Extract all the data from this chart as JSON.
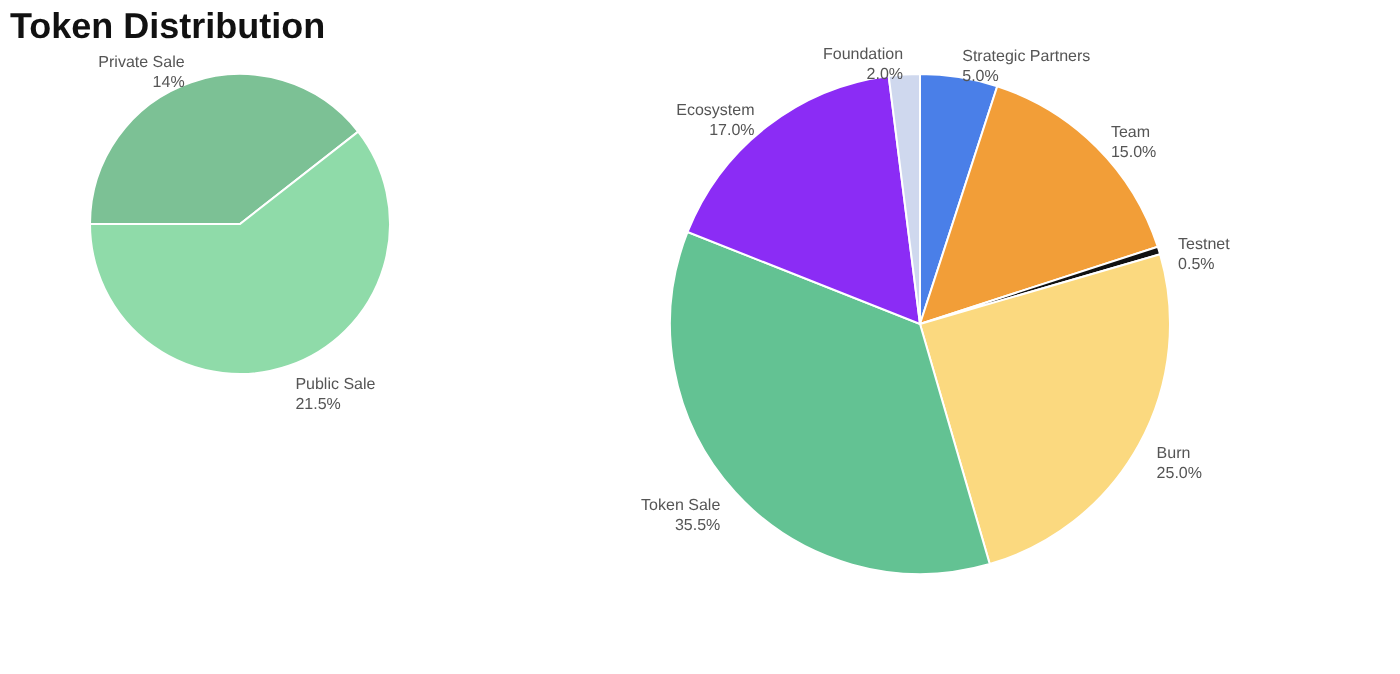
{
  "chart_data": [
    {
      "type": "pie",
      "title": "Token Distribution",
      "categories": [
        "Private Sale",
        "Public Sale"
      ],
      "values": [
        14,
        21.5
      ],
      "value_labels": [
        "14%",
        "21.5%"
      ],
      "colors": [
        "#7cc195",
        "#8fdba9"
      ],
      "legend": false
    },
    {
      "type": "pie",
      "categories": [
        "Strategic Partners",
        "Team",
        "Testnet",
        "Burn",
        "Token Sale",
        "Ecosystem",
        "Foundation"
      ],
      "values": [
        5,
        15,
        0.5,
        25,
        35.5,
        17,
        2
      ],
      "value_labels": [
        "5.0%",
        "15.0%",
        "0.5%",
        "25.0%",
        "35.5%",
        "17.0%",
        "2.0%"
      ],
      "colors": [
        "#4a7fe8",
        "#f29e38",
        "#111111",
        "#fbd97f",
        "#63c293",
        "#8b2cf5",
        "#cfd8ee"
      ],
      "legend": false
    }
  ]
}
